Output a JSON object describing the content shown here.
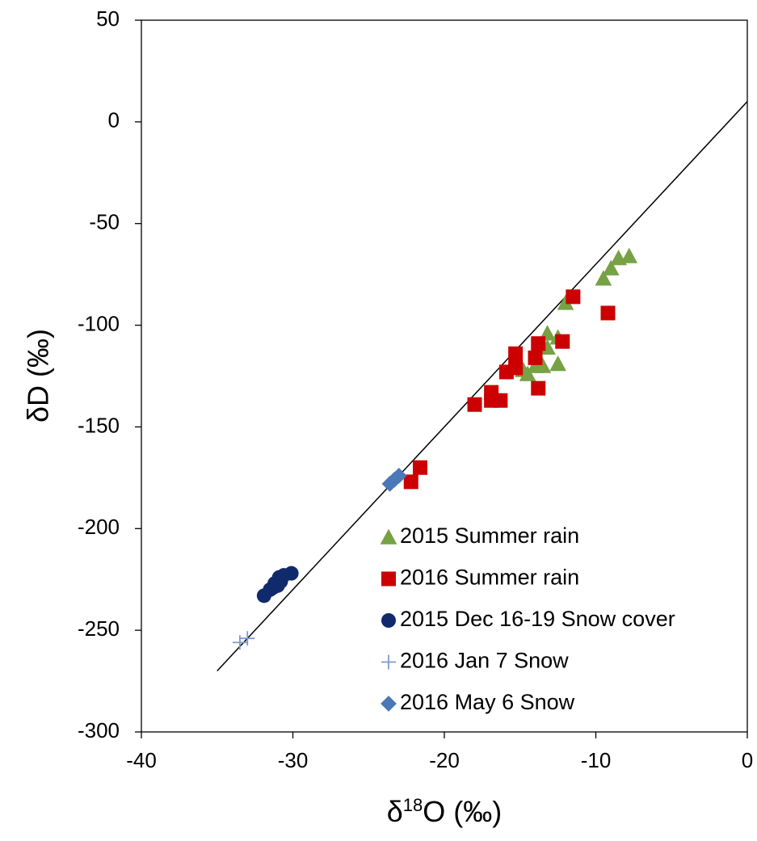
{
  "chart_data": {
    "type": "scatter",
    "xlabel": {
      "prefix": "δ",
      "sup": "18",
      "suffix": "O (‰)"
    },
    "ylabel": "δD (‰)",
    "xlim": [
      -40,
      0
    ],
    "ylim": [
      -300,
      50
    ],
    "x_ticks": [
      -40,
      -30,
      -20,
      -10,
      0
    ],
    "y_ticks": [
      50,
      0,
      -50,
      -100,
      -150,
      -200,
      -250,
      -300
    ],
    "grid": false,
    "legend_position": "bottom-right",
    "reference_line": {
      "slope": 8,
      "intercept": 10,
      "x_range": [
        -35,
        0
      ]
    },
    "series": [
      {
        "name": "2015  Summer rain",
        "marker": "triangle",
        "color": "#77a145",
        "points": [
          [
            -7.8,
            -66
          ],
          [
            -8.5,
            -67
          ],
          [
            -9.0,
            -72
          ],
          [
            -9.5,
            -77
          ],
          [
            -12.0,
            -89
          ],
          [
            -12.5,
            -106
          ],
          [
            -13.2,
            -104
          ],
          [
            -13.2,
            -111
          ],
          [
            -13.5,
            -120
          ],
          [
            -12.5,
            -119
          ],
          [
            -14.0,
            -120
          ],
          [
            -14.5,
            -124
          ],
          [
            -14.8,
            -122
          ]
        ]
      },
      {
        "name": "2016 Summer rain",
        "marker": "square",
        "color": "#cc0000",
        "points": [
          [
            -11.5,
            -86
          ],
          [
            -9.2,
            -94
          ],
          [
            -12.2,
            -108
          ],
          [
            -13.8,
            -109
          ],
          [
            -14.0,
            -116
          ],
          [
            -15.3,
            -114
          ],
          [
            -15.3,
            -121
          ],
          [
            -15.9,
            -123
          ],
          [
            -13.8,
            -131
          ],
          [
            -16.3,
            -137
          ],
          [
            -16.9,
            -137
          ],
          [
            -16.9,
            -133
          ],
          [
            -18.0,
            -139
          ],
          [
            -21.6,
            -170
          ],
          [
            -22.2,
            -177
          ]
        ]
      },
      {
        "name": "2015 Dec 16-19 Snow cover",
        "marker": "circle",
        "color": "#102a6b",
        "points": [
          [
            -30.1,
            -222
          ],
          [
            -30.6,
            -223
          ],
          [
            -30.9,
            -224
          ],
          [
            -30.8,
            -226
          ],
          [
            -31.2,
            -227
          ],
          [
            -31.3,
            -229
          ],
          [
            -31.0,
            -228
          ],
          [
            -31.5,
            -230
          ],
          [
            -31.9,
            -233
          ]
        ]
      },
      {
        "name": "2016 Jan 7 Snow",
        "marker": "plus",
        "color": "#7f9ac8",
        "points": [
          [
            -33.0,
            -254
          ],
          [
            -33.5,
            -256
          ]
        ]
      },
      {
        "name": "2016 May 6 Snow",
        "marker": "diamond",
        "color": "#4a78b8",
        "points": [
          [
            -23.0,
            -174
          ],
          [
            -23.3,
            -176
          ],
          [
            -23.6,
            -178
          ]
        ]
      }
    ]
  }
}
